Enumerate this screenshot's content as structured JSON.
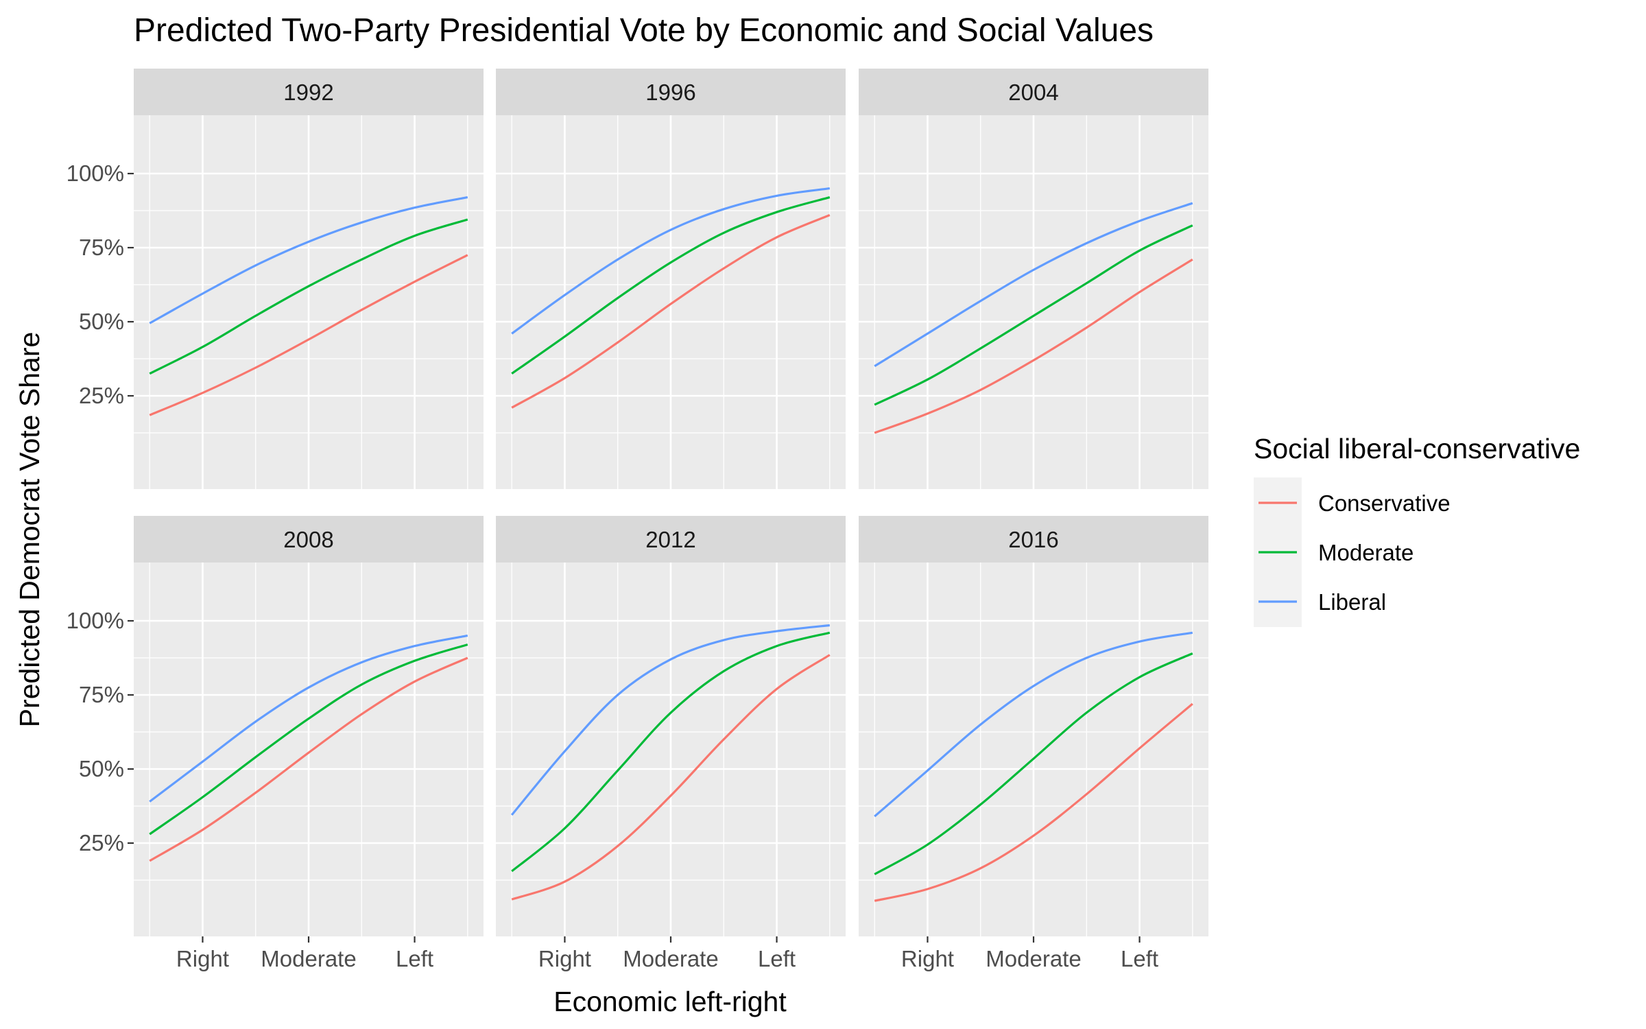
{
  "chart_data": {
    "type": "line",
    "title": "Predicted Two-Party Presidential Vote by Economic and Social Values",
    "xlabel": "Economic left-right",
    "ylabel": "Predicted Democrat Vote Share",
    "x_tick_labels": [
      "Right",
      "Moderate",
      "Left"
    ],
    "x_tick_positions": [
      2,
      4,
      6
    ],
    "xlim": [
      0.7,
      7.3
    ],
    "x_range_plotted": [
      1,
      7
    ],
    "y_tick_labels": [
      "25%",
      "50%",
      "75%",
      "100%"
    ],
    "y_tick_values": [
      25,
      50,
      75,
      100
    ],
    "ylim": [
      0,
      100
    ],
    "y_unit": "%",
    "grid": true,
    "legend": {
      "title": "Social liberal-conservative",
      "position": "right",
      "entries": [
        "Conservative",
        "Moderate",
        "Liberal"
      ]
    },
    "series_colors": {
      "Conservative": "#F8766D",
      "Moderate": "#00BA38",
      "Liberal": "#619CFF"
    },
    "x": [
      1,
      2,
      3,
      4,
      5,
      6,
      7
    ],
    "panels": [
      {
        "label": "1992",
        "series": [
          {
            "name": "Conservative",
            "values": [
              18.5,
              26,
              34.5,
              44,
              54,
              63.5,
              72.5
            ]
          },
          {
            "name": "Moderate",
            "values": [
              32.5,
              41.5,
              52,
              62,
              71,
              79,
              84.5
            ]
          },
          {
            "name": "Liberal",
            "values": [
              49.5,
              59.5,
              69,
              77,
              83.5,
              88.5,
              92
            ]
          }
        ]
      },
      {
        "label": "1996",
        "series": [
          {
            "name": "Conservative",
            "values": [
              21,
              31,
              43,
              56,
              68,
              78.5,
              86
            ]
          },
          {
            "name": "Moderate",
            "values": [
              32.5,
              45,
              58,
              70,
              80,
              87,
              92
            ]
          },
          {
            "name": "Liberal",
            "values": [
              46,
              59,
              71,
              81,
              88,
              92.5,
              95
            ]
          }
        ]
      },
      {
        "label": "2004",
        "series": [
          {
            "name": "Conservative",
            "values": [
              12.5,
              19,
              27,
              37,
              48,
              60,
              71
            ]
          },
          {
            "name": "Moderate",
            "values": [
              22,
              30.5,
              41,
              52,
              63,
              74,
              82.5
            ]
          },
          {
            "name": "Liberal",
            "values": [
              35,
              46,
              57,
              67.5,
              76.5,
              84,
              90
            ]
          }
        ]
      },
      {
        "label": "2008",
        "series": [
          {
            "name": "Conservative",
            "values": [
              19,
              29.5,
              42,
              55.5,
              68.5,
              79.5,
              87.5
            ]
          },
          {
            "name": "Moderate",
            "values": [
              28,
              40.5,
              54,
              67,
              78.5,
              86.5,
              92
            ]
          },
          {
            "name": "Liberal",
            "values": [
              39,
              52.5,
              66,
              77.5,
              86,
              91.5,
              95
            ]
          }
        ]
      },
      {
        "label": "2012",
        "series": [
          {
            "name": "Conservative",
            "values": [
              6,
              12,
              24,
              41,
              60,
              77,
              88.5
            ]
          },
          {
            "name": "Moderate",
            "values": [
              15.5,
              30,
              49.5,
              69,
              83,
              91.5,
              96
            ]
          },
          {
            "name": "Liberal",
            "values": [
              34.5,
              56,
              75,
              87,
              93.5,
              96.5,
              98.5
            ]
          }
        ]
      },
      {
        "label": "2016",
        "series": [
          {
            "name": "Conservative",
            "values": [
              5.5,
              9.5,
              16.5,
              27.5,
              41.5,
              57,
              72
            ]
          },
          {
            "name": "Moderate",
            "values": [
              14.5,
              24.5,
              38,
              53.5,
              69,
              81,
              89
            ]
          },
          {
            "name": "Liberal",
            "values": [
              34,
              49.5,
              65,
              78,
              87.5,
              93,
              96
            ]
          }
        ]
      }
    ]
  }
}
